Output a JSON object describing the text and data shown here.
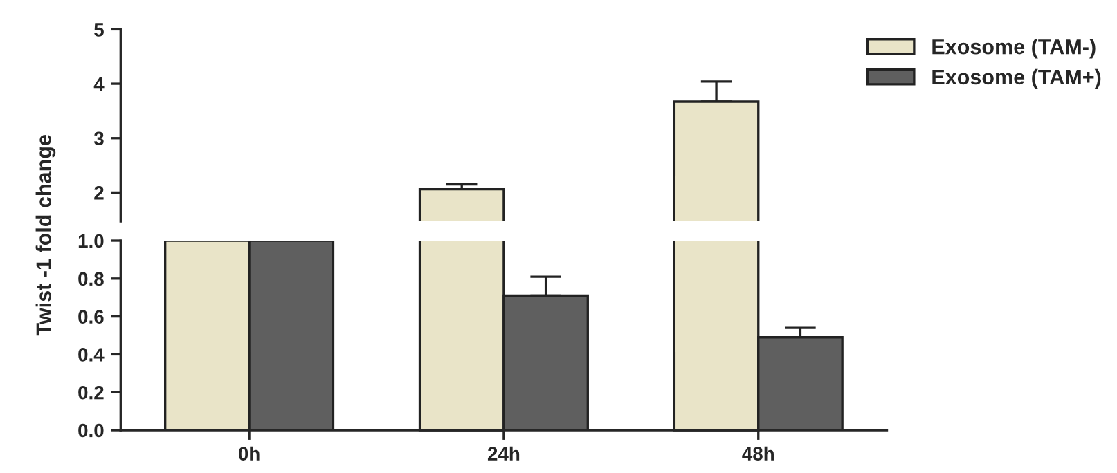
{
  "chart_data": [
    {
      "type": "bar",
      "ylim": [
        1.47,
        5
      ],
      "yticks": [
        2,
        3,
        4,
        5
      ],
      "tick_labels": "y",
      "legend": "top right",
      "series": [
        {
          "name": "Exosome (TAM-)",
          "color": "#e9e4c8",
          "values": [
            null,
            2.06,
            3.67
          ],
          "errors": [
            null,
            [
              2.06,
              2.15
            ],
            [
              3.67,
              4.04
            ]
          ]
        },
        {
          "name": "Exosome (TAM+)",
          "color": "#5f5f5f",
          "values": [
            null,
            null,
            null
          ]
        }
      ]
    },
    {
      "type": "bar",
      "categories": [
        "0h",
        "24h",
        "48h"
      ],
      "ylabel": "Twist -1 fold change",
      "ylim": [
        0,
        1.0
      ],
      "yticks": [
        {
          "value": 0,
          "label": "0.0"
        },
        {
          "value": 0.2,
          "label": "0.2"
        },
        {
          "value": 0.4,
          "label": "0.4"
        },
        {
          "value": 0.6,
          "label": "0.6"
        },
        {
          "value": 0.8,
          "label": "0.8"
        },
        {
          "value": 1.0,
          "label": "1.0"
        }
      ],
      "series": [
        {
          "color": "#e9e4c8",
          "values": [
            1,
            null,
            null
          ]
        },
        {
          "color": "#5f5f5f",
          "values": [
            1,
            0.71,
            0.49
          ],
          "errors": [
            null,
            [
              0.71,
              0.81
            ],
            [
              0.49,
              0.54
            ]
          ]
        }
      ]
    }
  ]
}
